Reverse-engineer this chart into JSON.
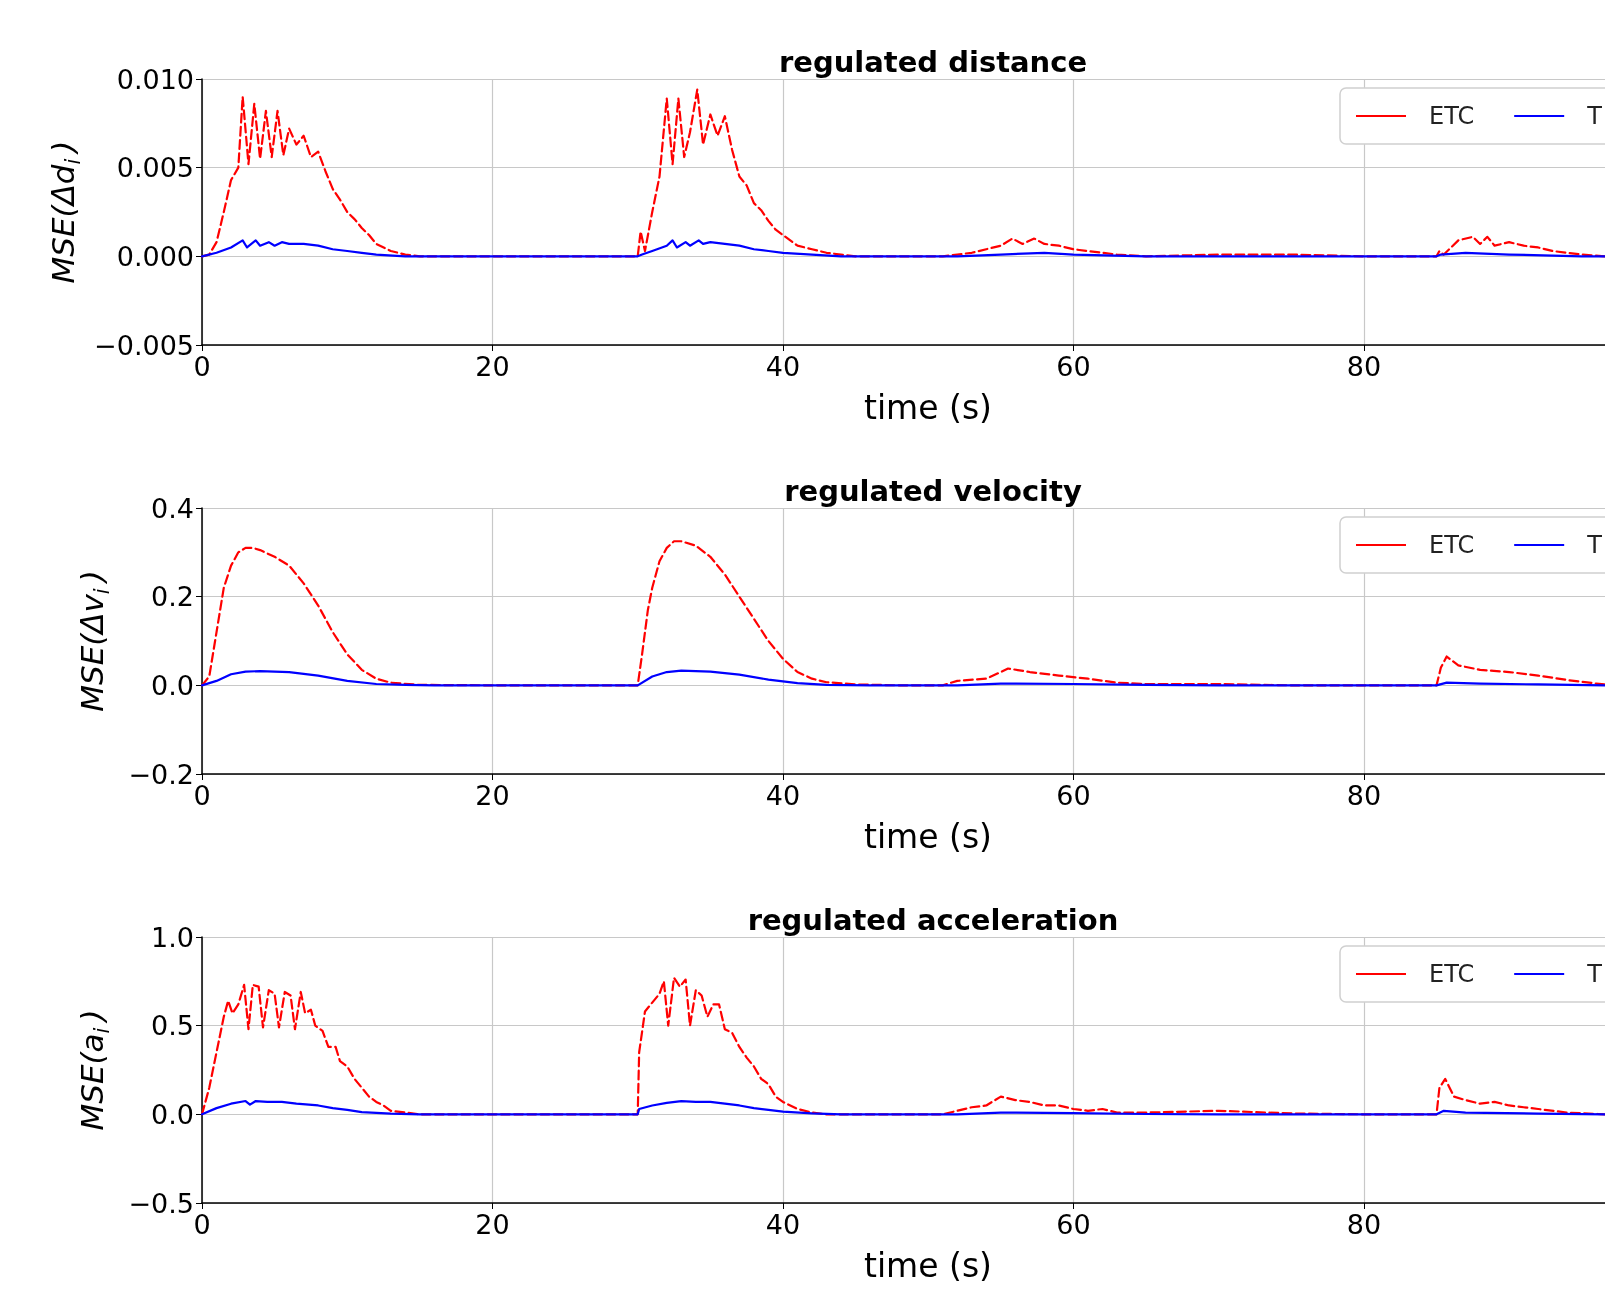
{
  "chart_data": [
    {
      "type": "line",
      "title": "regulated distance",
      "xlabel": "time (s)",
      "ylabel": "MSE(Δd$_{i}$)",
      "xlim": [
        0,
        96.6
      ],
      "xticks": [
        0,
        20,
        40,
        60,
        80
      ],
      "ylim": [
        -0.005,
        0.01
      ],
      "yticks": [
        {
          "value": -0.005,
          "label": "−0.005"
        },
        {
          "value": 0,
          "label": "0.000"
        },
        {
          "value": 0.005,
          "label": "0.005"
        },
        {
          "value": 0.01,
          "label": "0.010"
        }
      ],
      "grid": true,
      "legend": "top right",
      "marker": "none",
      "series": [
        {
          "name": "ETC",
          "color": "#ff0000",
          "line_style": "dashed",
          "x": [
            0,
            0.5,
            1,
            1.5,
            2,
            2.5,
            2.8,
            3.2,
            3.6,
            4.0,
            4.4,
            4.8,
            5.2,
            5.6,
            6.0,
            6.5,
            7.0,
            7.5,
            8,
            8.5,
            9,
            9.5,
            10,
            10.5,
            11,
            11.5,
            12,
            13,
            14,
            15,
            20,
            30,
            30.2,
            30.5,
            31,
            31.5,
            32,
            32.4,
            32.8,
            33.2,
            33.6,
            34.1,
            34.5,
            35,
            35.5,
            36,
            36.5,
            37,
            37.5,
            38,
            38.5,
            39,
            39.5,
            40,
            41,
            42,
            43,
            44,
            45,
            51,
            52,
            53,
            54,
            55,
            55.8,
            56.5,
            57.3,
            58,
            59,
            60,
            61,
            62,
            63,
            65,
            70,
            75,
            80,
            85,
            85.2,
            85.5,
            86.5,
            87.5,
            88,
            88.5,
            89,
            90,
            91,
            92,
            93,
            94,
            95,
            96.6
          ],
          "values": [
            0,
            0.0001,
            0.0008,
            0.0025,
            0.0043,
            0.005,
            0.009,
            0.0052,
            0.0086,
            0.0055,
            0.0082,
            0.0056,
            0.0082,
            0.0057,
            0.0072,
            0.0063,
            0.0068,
            0.0056,
            0.0059,
            0.0048,
            0.0038,
            0.0032,
            0.0025,
            0.0021,
            0.0016,
            0.0012,
            0.0007,
            0.0003,
            0.0001,
            0,
            0,
            0,
            0.0014,
            0.0003,
            0.0025,
            0.0045,
            0.0089,
            0.0052,
            0.0089,
            0.0056,
            0.007,
            0.0094,
            0.0063,
            0.008,
            0.0068,
            0.0079,
            0.006,
            0.0045,
            0.004,
            0.003,
            0.0026,
            0.002,
            0.0015,
            0.0012,
            0.0006,
            0.0004,
            0.0002,
            0.0001,
            0,
            0,
            0.0001,
            0.0002,
            0.0004,
            0.0006,
            0.001,
            0.0007,
            0.001,
            0.0007,
            0.0006,
            0.0004,
            0.0003,
            0.0002,
            0.0001,
            0,
            0.0001,
            0.0001,
            0,
            0,
            0.0003,
            0.0001,
            0.0009,
            0.0011,
            0.0007,
            0.0011,
            0.0006,
            0.0008,
            0.0006,
            0.0005,
            0.0003,
            0.0002,
            0.0001,
            0
          ]
        },
        {
          "name": "T",
          "color": "#0000ff",
          "line_style": "solid",
          "x": [
            0,
            1,
            2,
            2.8,
            3.1,
            3.7,
            4.0,
            4.6,
            5,
            5.5,
            6,
            7,
            8,
            9,
            10,
            11,
            12,
            14,
            16,
            30,
            30.3,
            31,
            32,
            32.4,
            32.7,
            33.3,
            33.6,
            34.2,
            34.5,
            35,
            36,
            37,
            38,
            39,
            40,
            42,
            44,
            46,
            52,
            55,
            58,
            60,
            65,
            70,
            85,
            85.3,
            87,
            90,
            95,
            96.6
          ],
          "values": [
            0,
            0.0002,
            0.0005,
            0.0009,
            0.0005,
            0.0009,
            0.0006,
            0.0008,
            0.0006,
            0.0008,
            0.0007,
            0.0007,
            0.0006,
            0.0004,
            0.0003,
            0.0002,
            0.0001,
            0,
            0,
            0,
            0.0001,
            0.0003,
            0.0006,
            0.0009,
            0.0005,
            0.0008,
            0.0006,
            0.0009,
            0.0007,
            0.0008,
            0.0007,
            0.0006,
            0.0004,
            0.0003,
            0.0002,
            0.0001,
            0,
            0,
            0,
            0.0001,
            0.0002,
            0.0001,
            0,
            0,
            0,
            0.0001,
            0.0002,
            0.0001,
            0,
            0
          ]
        }
      ]
    },
    {
      "type": "line",
      "title": "regulated velocity",
      "xlabel": "time (s)",
      "ylabel": "MSE(Δv$_{i}$)",
      "xlim": [
        0,
        96.6
      ],
      "xticks": [
        0,
        20,
        40,
        60,
        80
      ],
      "ylim": [
        -0.2,
        0.4
      ],
      "yticks": [
        {
          "value": -0.2,
          "label": "−0.2"
        },
        {
          "value": 0,
          "label": "0.0"
        },
        0.2,
        0.4
      ],
      "grid": true,
      "legend": "top right",
      "marker": "none",
      "series": [
        {
          "name": "ETC",
          "color": "#ff0000",
          "line_style": "dashed",
          "x": [
            0,
            0.5,
            1,
            1.5,
            2,
            2.5,
            3,
            3.5,
            4,
            5,
            6,
            7,
            8,
            9,
            10,
            11,
            12,
            13,
            15,
            20,
            30,
            30.3,
            30.7,
            31,
            31.5,
            32,
            32.5,
            33,
            34,
            35,
            36,
            37,
            38,
            39,
            40,
            41,
            42,
            43,
            45,
            48,
            51,
            52,
            54,
            55,
            55.5,
            57,
            59,
            61,
            63,
            65,
            70,
            75,
            85,
            85.3,
            85.7,
            86.5,
            88,
            90,
            92,
            94,
            96,
            96.6
          ],
          "values": [
            0,
            0.02,
            0.12,
            0.22,
            0.27,
            0.3,
            0.31,
            0.31,
            0.305,
            0.29,
            0.27,
            0.23,
            0.18,
            0.12,
            0.07,
            0.035,
            0.015,
            0.006,
            0.001,
            0,
            0,
            0.07,
            0.17,
            0.22,
            0.28,
            0.31,
            0.325,
            0.325,
            0.315,
            0.29,
            0.25,
            0.2,
            0.15,
            0.1,
            0.06,
            0.03,
            0.015,
            0.007,
            0.002,
            0,
            0,
            0.01,
            0.015,
            0.03,
            0.038,
            0.03,
            0.022,
            0.015,
            0.006,
            0.003,
            0.003,
            0,
            0,
            0.04,
            0.065,
            0.045,
            0.035,
            0.03,
            0.022,
            0.012,
            0.004,
            0.002
          ]
        },
        {
          "name": "T",
          "color": "#0000ff",
          "line_style": "solid",
          "x": [
            0,
            1,
            2,
            3,
            4,
            6,
            8,
            10,
            12,
            14,
            16,
            30,
            31,
            32,
            33,
            35,
            37,
            39,
            41,
            43,
            46,
            52,
            55,
            60,
            65,
            70,
            85,
            85.7,
            88,
            92,
            96.6
          ],
          "values": [
            0,
            0.01,
            0.025,
            0.031,
            0.032,
            0.03,
            0.022,
            0.01,
            0.003,
            0.001,
            0,
            0,
            0.02,
            0.03,
            0.033,
            0.031,
            0.024,
            0.013,
            0.005,
            0.001,
            0,
            0,
            0.004,
            0.003,
            0.001,
            0,
            0,
            0.006,
            0.004,
            0.002,
            0
          ]
        }
      ]
    },
    {
      "type": "line",
      "title": "regulated acceleration",
      "xlabel": "time (s)",
      "ylabel": "MSE(a$_{i}$)",
      "xlim": [
        0,
        96.6
      ],
      "xticks": [
        0,
        20,
        40,
        60,
        80
      ],
      "ylim": [
        -0.5,
        1.0
      ],
      "yticks": [
        {
          "value": -0.5,
          "label": "−0.5"
        },
        {
          "value": 0,
          "label": "0.0"
        },
        0.5,
        {
          "value": 1,
          "label": "1.0"
        }
      ],
      "grid": true,
      "legend": "top right",
      "marker": "none",
      "series": [
        {
          "name": "ETC",
          "color": "#ff0000",
          "line_style": "dashed",
          "x": [
            0,
            0.5,
            1,
            1.5,
            1.8,
            2.1,
            2.5,
            2.9,
            3.2,
            3.5,
            3.9,
            4.2,
            4.6,
            5,
            5.3,
            5.7,
            6.1,
            6.4,
            6.8,
            7.1,
            7.5,
            7.8,
            8.3,
            8.7,
            9.2,
            9.5,
            10,
            10.5,
            11,
            11.5,
            12,
            12.5,
            13,
            14,
            15,
            30,
            30.1,
            30.5,
            31,
            31.5,
            31.8,
            32.1,
            32.5,
            32.9,
            33.3,
            33.6,
            34,
            34.4,
            34.8,
            35.2,
            35.6,
            36,
            36.5,
            37,
            37.5,
            38,
            38.5,
            39,
            39.5,
            40,
            41,
            42,
            43,
            51,
            52,
            53,
            54,
            55,
            56,
            57,
            58,
            59,
            60,
            61,
            62,
            63,
            65,
            70,
            75,
            80,
            85,
            85.2,
            85.6,
            86.2,
            87,
            88,
            89,
            90,
            91,
            92,
            94,
            96.6
          ],
          "values": [
            0,
            0.15,
            0.35,
            0.55,
            0.64,
            0.57,
            0.62,
            0.73,
            0.48,
            0.73,
            0.72,
            0.49,
            0.7,
            0.68,
            0.49,
            0.69,
            0.67,
            0.48,
            0.69,
            0.57,
            0.59,
            0.5,
            0.47,
            0.38,
            0.38,
            0.3,
            0.27,
            0.2,
            0.15,
            0.1,
            0.07,
            0.05,
            0.02,
            0.01,
            0,
            0,
            0.35,
            0.58,
            0.63,
            0.68,
            0.75,
            0.5,
            0.77,
            0.72,
            0.76,
            0.5,
            0.7,
            0.67,
            0.55,
            0.62,
            0.62,
            0.48,
            0.46,
            0.38,
            0.32,
            0.27,
            0.2,
            0.17,
            0.1,
            0.07,
            0.03,
            0.01,
            0,
            0,
            0.02,
            0.04,
            0.05,
            0.1,
            0.08,
            0.07,
            0.05,
            0.05,
            0.03,
            0.02,
            0.03,
            0.01,
            0.01,
            0.02,
            0.005,
            0,
            0,
            0.15,
            0.2,
            0.1,
            0.08,
            0.06,
            0.07,
            0.05,
            0.04,
            0.03,
            0.01,
            0
          ]
        },
        {
          "name": "T",
          "color": "#0000ff",
          "line_style": "solid",
          "x": [
            0,
            1,
            2,
            3,
            3.3,
            3.7,
            4.5,
            5.5,
            6.5,
            8,
            9,
            10,
            11,
            13,
            15,
            30,
            30.1,
            31,
            32,
            33,
            34,
            35,
            36,
            37,
            38,
            39,
            40,
            42,
            44,
            52,
            55,
            60,
            65,
            70,
            85,
            85.5,
            87,
            92,
            96.6
          ],
          "values": [
            0,
            0.035,
            0.06,
            0.075,
            0.055,
            0.075,
            0.07,
            0.07,
            0.06,
            0.05,
            0.035,
            0.025,
            0.012,
            0.004,
            0,
            0,
            0.03,
            0.05,
            0.065,
            0.075,
            0.07,
            0.07,
            0.06,
            0.05,
            0.035,
            0.025,
            0.015,
            0.005,
            0,
            0,
            0.01,
            0.007,
            0.002,
            0,
            0,
            0.02,
            0.01,
            0.004,
            0
          ]
        }
      ]
    }
  ]
}
